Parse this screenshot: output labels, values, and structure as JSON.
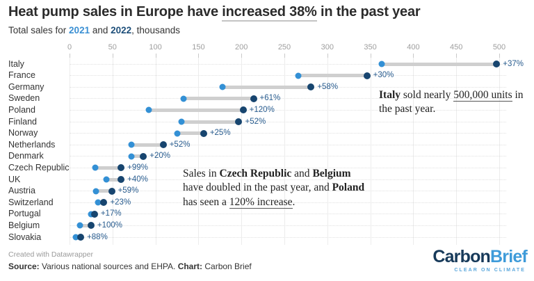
{
  "colors": {
    "y2021": "#3390d5",
    "y2022": "#17456f",
    "pct_label": "#275b8e",
    "connector": "#cfcfcf",
    "grid": "#ececec",
    "axis_text": "#9e9e9e"
  },
  "header": {
    "title_pre": "Heat pump sales in Europe have ",
    "title_underline": "increased 38%",
    "title_post": " in the past year",
    "subtitle_pre": "Total sales for ",
    "subtitle_year1": "2021",
    "subtitle_mid": " and ",
    "subtitle_year2": "2022",
    "subtitle_post": ", thousands"
  },
  "chart_data": {
    "type": "dumbbell",
    "title": "Heat pump sales in Europe have increased 38% in the past year",
    "subtitle": "Total sales for 2021 and 2022, thousands",
    "unit": "thousands",
    "xlim": [
      0,
      500
    ],
    "grid": true,
    "categories": [
      "Italy",
      "France",
      "Germany",
      "Sweden",
      "Poland",
      "Finland",
      "Norway",
      "Netherlands",
      "Denmark",
      "Czech Republic",
      "UK",
      "Austria",
      "Switzerland",
      "Portugal",
      "Belgium",
      "Slovakia"
    ],
    "series": [
      {
        "name": "2021",
        "values": [
          363,
          266,
          178,
          133,
          92,
          130,
          125,
          72,
          72,
          30,
          43,
          31,
          33,
          25,
          12.5,
          7
        ]
      },
      {
        "name": "2022",
        "values": [
          497,
          346,
          281,
          214,
          202,
          197,
          156,
          109,
          86,
          60,
          60,
          49,
          40,
          29,
          25,
          13
        ]
      }
    ],
    "change_labels": [
      "+37%",
      "+30%",
      "+58%",
      "+61%",
      "+120%",
      "+52%",
      "+25%",
      "+52%",
      "+20%",
      "+99%",
      "+40%",
      "+59%",
      "+23%",
      "+17%",
      "+100%",
      "+88%"
    ],
    "axis": {
      "min": 0,
      "max": 500,
      "tick_step": 50,
      "ticks": [
        0,
        50,
        100,
        150,
        200,
        250,
        300,
        350,
        400,
        450,
        500
      ]
    }
  },
  "annotations": {
    "italy": {
      "bold": "Italy",
      "mid": " sold nearly ",
      "underline": "500,000 units",
      "post": " in the past year."
    },
    "doubled": {
      "pre": "Sales in ",
      "bold1": "Czech Republic",
      "mid1": " and ",
      "bold2": "Belgium",
      "mid2": " have doubled in the past year, and ",
      "bold3": "Poland",
      "mid3": " has seen a ",
      "underline": "120% increase",
      "post": "."
    }
  },
  "footer": {
    "credit": "Created with Datawrapper",
    "source_label": "Source:",
    "source_text": " Various national sources and EHPA. ",
    "chart_label": "Chart:",
    "chart_text": " Carbon Brief"
  },
  "logo": {
    "part1": "Carbon",
    "part2": "Brief",
    "tagline": "CLEAR ON CLIMATE"
  }
}
